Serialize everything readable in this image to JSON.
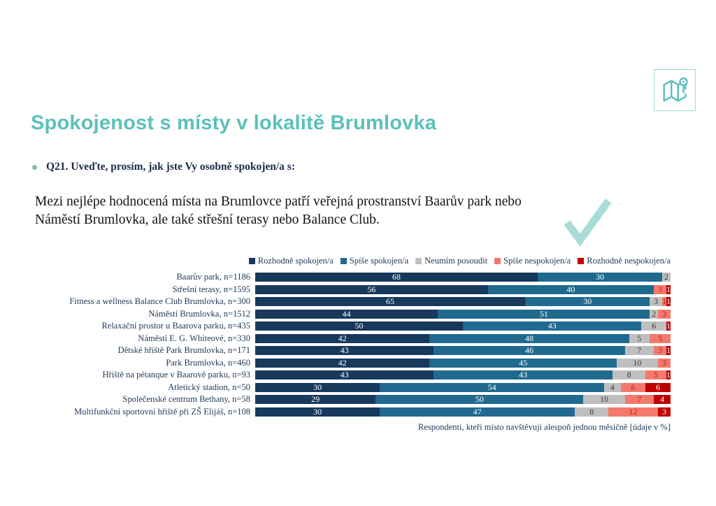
{
  "page": {
    "background": "#ffffff"
  },
  "header": {
    "title": "Spokojenost s místy v lokalitě Brumlovka",
    "title_color": "#5bc0bb",
    "question": "Q21. Uveďte, prosím, jak jste Vy osobně spokojen/a s:",
    "question_color": "#1b2b4a",
    "insight": "Mezi nejlépe hodnocená místa na Brumlovce patří veřejná prostranství Baarův park nebo Náměstí Brumlovka, ale také střešní terasy nebo Balance Club.",
    "checkmark_color": "#a9dcd8",
    "map_icon_color": "#5bc0bb"
  },
  "chart_data": {
    "type": "bar",
    "orientation": "horizontal",
    "stacked": true,
    "unit": "%",
    "xlim": [
      0,
      100
    ],
    "grid": false,
    "legend_position": "top",
    "text_color": "#1f3855",
    "categories": [
      "Baarův park, n=1186",
      "Střešní terasy, n=1595",
      "Fitness a wellness Balance Club Brumlovka, n=300",
      "Náměstí Brumlovka, n=1512",
      "Relaxační prostor u Baarova parku, n=435",
      "Náměstí E. G. Whiteové, n=330",
      "Dětské hřiště Park Brumlovka, n=171",
      "Park Brumlovka, n=460",
      "Hřiště na pétanque v Baarově parku, n=93",
      "Atletický stadion, n=50",
      "Společenské centrum Bethany, n=58",
      "Multifunkční sportovní hřiště při ZŠ Elijáš, n=108"
    ],
    "series": [
      {
        "name": "Rozhodně spokojen/a",
        "color": "#17395c",
        "label_color": "#ffffff",
        "values": [
          68,
          56,
          65,
          44,
          50,
          42,
          43,
          42,
          43,
          30,
          29,
          30
        ]
      },
      {
        "name": "Spíše spokojen/a",
        "color": "#1f6a8e",
        "label_color": "#ffffff",
        "values": [
          30,
          40,
          30,
          51,
          43,
          48,
          46,
          45,
          43,
          54,
          50,
          47
        ]
      },
      {
        "name": "Neumím posoudit",
        "color": "#bfbfbf",
        "label_color": "#3a3a3a",
        "values": [
          2,
          0,
          3,
          2,
          6,
          5,
          7,
          10,
          8,
          4,
          10,
          8
        ]
      },
      {
        "name": "Spíše nespokojen/a",
        "color": "#f4796c",
        "label_color": "#b02418",
        "values": [
          0,
          3,
          1,
          3,
          0,
          5,
          3,
          3,
          5,
          6,
          7,
          12
        ]
      },
      {
        "name": "Rozhodně nespokojen/a",
        "color": "#c00000",
        "label_color": "#ffffff",
        "values": [
          0,
          1,
          1,
          0,
          1,
          0,
          1,
          0,
          1,
          6,
          4,
          3
        ]
      }
    ],
    "note": "Respondenti, kteří místo navštěvují alespoň jednou měsíčně [údaje v %]"
  }
}
